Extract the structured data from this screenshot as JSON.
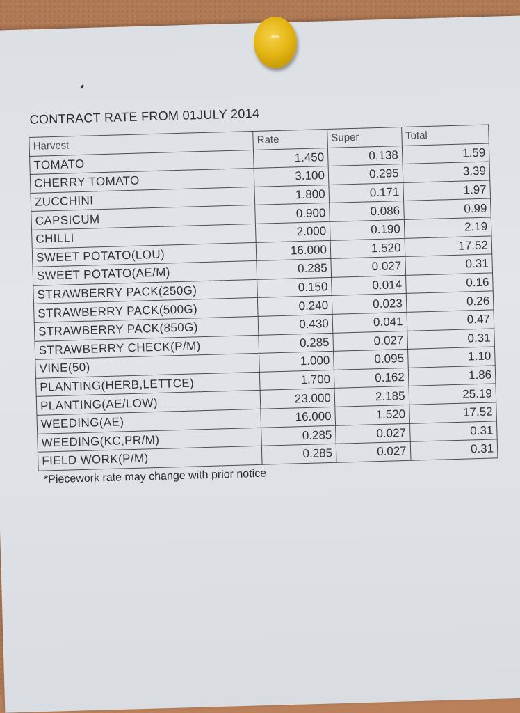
{
  "title": "CONTRACT RATE FROM 01JULY 2014",
  "columns": [
    "Harvest",
    "Rate",
    "Super",
    "Total"
  ],
  "rows": [
    [
      "TOMATO",
      "1.450",
      "0.138",
      "1.59"
    ],
    [
      "CHERRY TOMATO",
      "3.100",
      "0.295",
      "3.39"
    ],
    [
      "ZUCCHINI",
      "1.800",
      "0.171",
      "1.97"
    ],
    [
      "CAPSICUM",
      "0.900",
      "0.086",
      "0.99"
    ],
    [
      "CHILLI",
      "2.000",
      "0.190",
      "2.19"
    ],
    [
      "SWEET POTATO(LOU)",
      "16.000",
      "1.520",
      "17.52"
    ],
    [
      "SWEET POTATO(AE/M)",
      "0.285",
      "0.027",
      "0.31"
    ],
    [
      "STRAWBERRY PACK(250G)",
      "0.150",
      "0.014",
      "0.16"
    ],
    [
      "STRAWBERRY PACK(500G)",
      "0.240",
      "0.023",
      "0.26"
    ],
    [
      "STRAWBERRY PACK(850G)",
      "0.430",
      "0.041",
      "0.47"
    ],
    [
      "STRAWBERRY CHECK(P/M)",
      "0.285",
      "0.027",
      "0.31"
    ],
    [
      "VINE(50)",
      "1.000",
      "0.095",
      "1.10"
    ],
    [
      "PLANTING(HERB,LETTCE)",
      "1.700",
      "0.162",
      "1.86"
    ],
    [
      "PLANTING(AE/LOW)",
      "23.000",
      "2.185",
      "25.19"
    ],
    [
      "WEEDING(AE)",
      "16.000",
      "1.520",
      "17.52"
    ],
    [
      "WEEDING(KC,PR/M)",
      "0.285",
      "0.027",
      "0.31"
    ],
    [
      "FIELD WORK(P/M)",
      "0.285",
      "0.027",
      "0.31"
    ]
  ],
  "note": "*Piecework rate may change with prior notice",
  "colors": {
    "board": "#b17a55",
    "paper": "#dfe2e7",
    "pin": "#e4b514",
    "ink": "#303238"
  }
}
